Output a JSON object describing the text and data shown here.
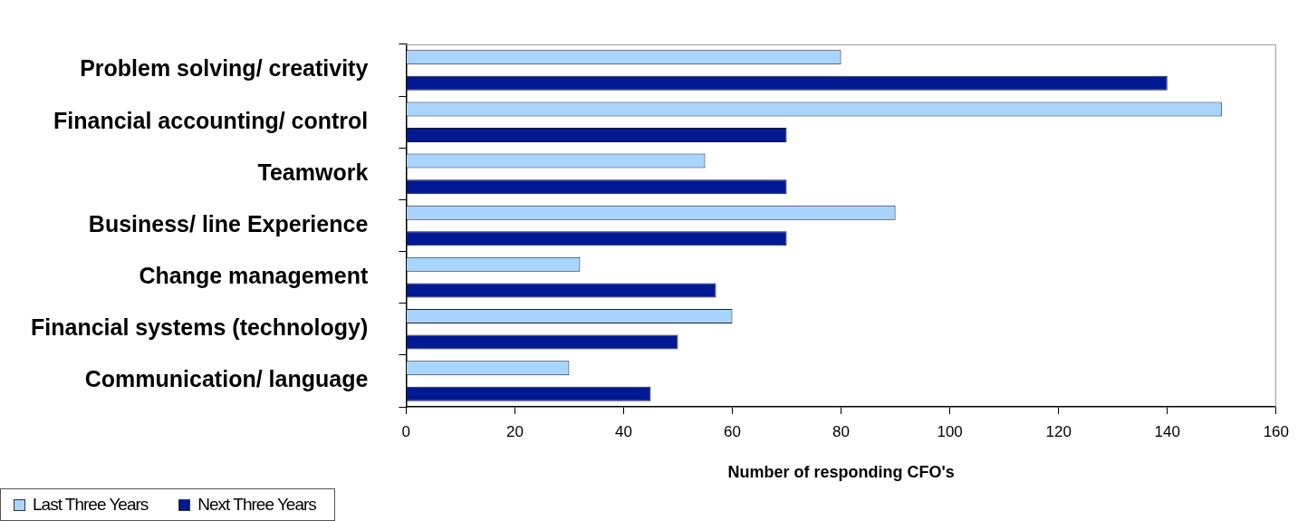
{
  "chart_data": {
    "type": "bar",
    "orientation": "horizontal",
    "xlabel": "Number of responding CFO's",
    "categories": [
      "Problem solving/ creativity",
      "Financial accounting/ control",
      "Teamwork",
      "Business/ line Experience",
      "Change management",
      "Financial systems (technology)",
      "Communication/ language"
    ],
    "series": [
      {
        "name": "Last Three Years",
        "color": "#a8d5ff",
        "values": [
          80,
          150,
          55,
          90,
          32,
          60,
          30
        ]
      },
      {
        "name": "Next Three Years",
        "color": "#021994",
        "values": [
          140,
          70,
          70,
          70,
          57,
          50,
          45
        ]
      }
    ],
    "xlim": [
      0,
      160
    ],
    "xticks": [
      0,
      20,
      40,
      60,
      80,
      100,
      120,
      140,
      160
    ],
    "grid": false,
    "legend": "bottom left"
  }
}
